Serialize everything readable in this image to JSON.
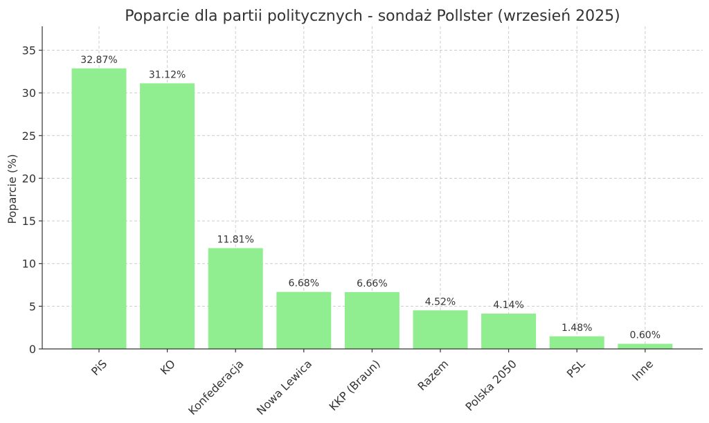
{
  "chart_data": {
    "type": "bar",
    "title": "Poparcie dla partii politycznych - sondaż Pollster (wrzesień 2025)",
    "xlabel": "",
    "ylabel": "Poparcie (%)",
    "categories": [
      "PiS",
      "KO",
      "Konfederacja",
      "Nowa Lewica",
      "KKP (Braun)",
      "Razem",
      "Polska 2050",
      "PSL",
      "Inne"
    ],
    "values": [
      32.87,
      31.12,
      11.81,
      6.68,
      6.66,
      4.52,
      4.14,
      1.48,
      0.6
    ],
    "data_labels": [
      "32.87%",
      "31.12%",
      "11.81%",
      "6.68%",
      "6.66%",
      "4.52%",
      "4.14%",
      "1.48%",
      "0.60%"
    ],
    "ylim": [
      0,
      37.8
    ],
    "yticks": [
      0,
      5,
      10,
      15,
      20,
      25,
      30,
      35
    ],
    "grid": true,
    "bar_color": "#90ee90"
  }
}
